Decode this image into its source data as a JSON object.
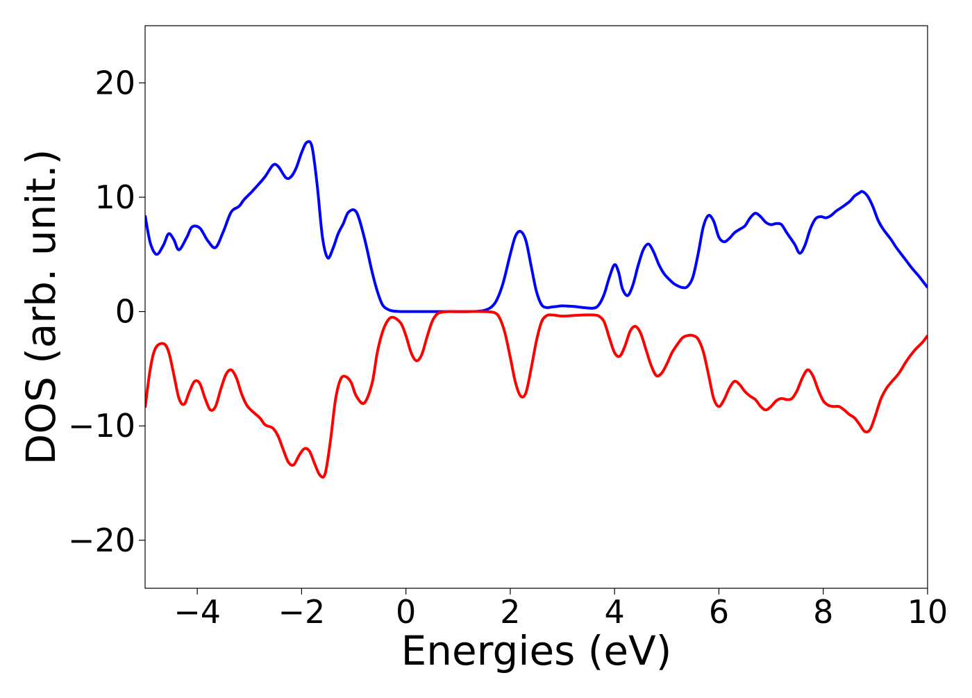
{
  "chart_data": {
    "type": "line",
    "title": "",
    "xlabel": "Energies (eV)",
    "ylabel": "DOS (arb. unit.)",
    "xlim": [
      -5,
      10
    ],
    "ylim": [
      -24.2,
      25
    ],
    "xticks": [
      -4,
      -2,
      0,
      2,
      4,
      6,
      8,
      10
    ],
    "xtick_labels": [
      "−4",
      "−2",
      "0",
      "2",
      "4",
      "6",
      "8",
      "10"
    ],
    "yticks": [
      -20,
      -10,
      0,
      10,
      20
    ],
    "ytick_labels": [
      "−20",
      "−10",
      "0",
      "10",
      "20"
    ],
    "grid": false,
    "legend": "none",
    "series": [
      {
        "color": "#0000ff",
        "x": [
          -5.0,
          -4.9,
          -4.78,
          -4.65,
          -4.55,
          -4.45,
          -4.35,
          -4.2,
          -4.1,
          -3.95,
          -3.8,
          -3.65,
          -3.5,
          -3.35,
          -3.2,
          -3.1,
          -2.95,
          -2.85,
          -2.7,
          -2.55,
          -2.45,
          -2.3,
          -2.2,
          -2.1,
          -2.0,
          -1.9,
          -1.8,
          -1.7,
          -1.6,
          -1.5,
          -1.4,
          -1.3,
          -1.2,
          -1.1,
          -0.95,
          -0.8,
          -0.65,
          -0.55,
          -0.45,
          -0.35,
          -0.25,
          -0.1,
          0.0,
          0.1,
          0.2,
          0.35,
          0.5,
          0.8,
          1.2,
          1.5,
          1.7,
          1.85,
          2.0,
          2.1,
          2.2,
          2.3,
          2.4,
          2.5,
          2.6,
          2.7,
          2.8,
          2.9,
          3.0,
          3.2,
          3.4,
          3.6,
          3.7,
          3.8,
          3.9,
          4.0,
          4.08,
          4.15,
          4.25,
          4.35,
          4.45,
          4.55,
          4.65,
          4.75,
          4.85,
          4.95,
          5.05,
          5.15,
          5.3,
          5.4,
          5.5,
          5.6,
          5.7,
          5.8,
          5.9,
          6.0,
          6.1,
          6.2,
          6.3,
          6.4,
          6.5,
          6.6,
          6.7,
          6.8,
          6.9,
          7.0,
          7.1,
          7.2,
          7.3,
          7.45,
          7.55,
          7.65,
          7.75,
          7.85,
          7.95,
          8.05,
          8.15,
          8.25,
          8.35,
          8.5,
          8.6,
          8.7,
          8.75,
          8.85,
          8.95,
          9.05,
          9.15,
          9.3,
          9.4,
          9.55,
          9.7,
          9.85,
          10.0
        ],
        "y": [
          8.4,
          6.0,
          5.0,
          5.8,
          6.8,
          6.3,
          5.4,
          6.5,
          7.4,
          7.3,
          6.2,
          5.6,
          7.0,
          8.7,
          9.2,
          9.8,
          10.5,
          11.0,
          11.8,
          12.8,
          12.7,
          11.7,
          11.8,
          12.6,
          13.9,
          14.8,
          14.4,
          11.0,
          6.5,
          4.7,
          5.5,
          6.8,
          7.7,
          8.7,
          8.7,
          6.5,
          3.5,
          1.8,
          0.6,
          0.2,
          0.05,
          0.0,
          0.0,
          0.0,
          0.0,
          0.0,
          0.0,
          0.0,
          0.0,
          0.1,
          0.7,
          2.3,
          5.0,
          6.6,
          7.0,
          6.2,
          4.0,
          1.8,
          0.6,
          0.35,
          0.4,
          0.45,
          0.5,
          0.45,
          0.35,
          0.3,
          0.6,
          1.5,
          3.0,
          4.1,
          3.4,
          2.0,
          1.4,
          2.3,
          4.0,
          5.4,
          5.9,
          5.2,
          4.1,
          3.3,
          2.8,
          2.4,
          2.1,
          2.2,
          3.0,
          5.0,
          7.4,
          8.4,
          7.9,
          6.5,
          6.1,
          6.4,
          6.9,
          7.2,
          7.5,
          8.2,
          8.6,
          8.3,
          7.8,
          7.6,
          7.7,
          7.6,
          6.9,
          5.9,
          5.1,
          5.8,
          7.2,
          8.1,
          8.3,
          8.2,
          8.4,
          8.8,
          9.1,
          9.6,
          10.1,
          10.4,
          10.5,
          10.1,
          9.2,
          8.0,
          7.2,
          6.3,
          5.6,
          4.7,
          3.8,
          3.0,
          2.1
        ]
      },
      {
        "color": "#ff0000",
        "x": [
          -5.0,
          -4.9,
          -4.8,
          -4.65,
          -4.55,
          -4.45,
          -4.35,
          -4.25,
          -4.15,
          -4.05,
          -3.95,
          -3.85,
          -3.75,
          -3.65,
          -3.55,
          -3.45,
          -3.35,
          -3.25,
          -3.15,
          -3.05,
          -2.95,
          -2.8,
          -2.7,
          -2.55,
          -2.45,
          -2.35,
          -2.25,
          -2.15,
          -2.05,
          -1.95,
          -1.85,
          -1.75,
          -1.65,
          -1.55,
          -1.45,
          -1.35,
          -1.25,
          -1.15,
          -1.05,
          -0.95,
          -0.8,
          -0.65,
          -0.55,
          -0.45,
          -0.35,
          -0.25,
          -0.1,
          0.0,
          0.1,
          0.2,
          0.3,
          0.4,
          0.5,
          0.6,
          0.7,
          0.8,
          0.9,
          1.0,
          1.2,
          1.5,
          1.7,
          1.8,
          1.9,
          2.0,
          2.1,
          2.2,
          2.3,
          2.4,
          2.5,
          2.6,
          2.7,
          2.8,
          2.9,
          3.0,
          3.2,
          3.4,
          3.6,
          3.7,
          3.8,
          3.9,
          4.0,
          4.1,
          4.2,
          4.3,
          4.4,
          4.5,
          4.6,
          4.7,
          4.8,
          4.9,
          5.0,
          5.1,
          5.2,
          5.3,
          5.4,
          5.5,
          5.6,
          5.7,
          5.8,
          5.9,
          6.0,
          6.1,
          6.2,
          6.3,
          6.4,
          6.5,
          6.6,
          6.7,
          6.8,
          6.9,
          7.0,
          7.1,
          7.2,
          7.3,
          7.4,
          7.5,
          7.6,
          7.7,
          7.8,
          7.9,
          8.0,
          8.1,
          8.2,
          8.3,
          8.4,
          8.5,
          8.6,
          8.7,
          8.8,
          8.9,
          9.0,
          9.1,
          9.2,
          9.3,
          9.45,
          9.6,
          9.75,
          9.9,
          10.0
        ],
        "y": [
          -8.4,
          -5.0,
          -3.2,
          -2.8,
          -3.5,
          -5.5,
          -7.6,
          -8.1,
          -7.0,
          -6.1,
          -6.3,
          -7.6,
          -8.6,
          -8.3,
          -6.8,
          -5.5,
          -5.1,
          -5.8,
          -7.2,
          -8.2,
          -8.7,
          -9.3,
          -9.9,
          -10.2,
          -10.9,
          -12.1,
          -13.2,
          -13.4,
          -12.6,
          -12.0,
          -12.2,
          -13.3,
          -14.3,
          -14.2,
          -11.4,
          -7.7,
          -5.9,
          -5.7,
          -6.2,
          -7.4,
          -8.0,
          -6.3,
          -3.6,
          -1.8,
          -0.8,
          -0.5,
          -1.0,
          -2.1,
          -3.6,
          -4.3,
          -3.8,
          -2.3,
          -0.9,
          -0.2,
          -0.05,
          0.0,
          0.0,
          0.0,
          0.0,
          0.0,
          -0.1,
          -0.6,
          -1.9,
          -4.0,
          -6.2,
          -7.4,
          -7.1,
          -5.0,
          -2.6,
          -0.9,
          -0.35,
          -0.3,
          -0.35,
          -0.4,
          -0.35,
          -0.3,
          -0.3,
          -0.4,
          -0.9,
          -2.3,
          -3.6,
          -3.9,
          -3.0,
          -1.7,
          -1.3,
          -1.9,
          -3.3,
          -4.7,
          -5.6,
          -5.4,
          -4.6,
          -3.6,
          -2.9,
          -2.3,
          -2.1,
          -2.1,
          -2.4,
          -3.5,
          -5.5,
          -7.6,
          -8.3,
          -7.7,
          -6.7,
          -6.1,
          -6.4,
          -7.0,
          -7.4,
          -7.7,
          -8.3,
          -8.6,
          -8.3,
          -7.8,
          -7.6,
          -7.7,
          -7.6,
          -6.9,
          -5.8,
          -5.1,
          -5.6,
          -6.8,
          -7.8,
          -8.2,
          -8.3,
          -8.3,
          -8.6,
          -9.0,
          -9.3,
          -9.9,
          -10.5,
          -10.3,
          -9.1,
          -7.7,
          -6.8,
          -6.2,
          -5.4,
          -4.3,
          -3.4,
          -2.7,
          -2.1
        ]
      }
    ]
  }
}
